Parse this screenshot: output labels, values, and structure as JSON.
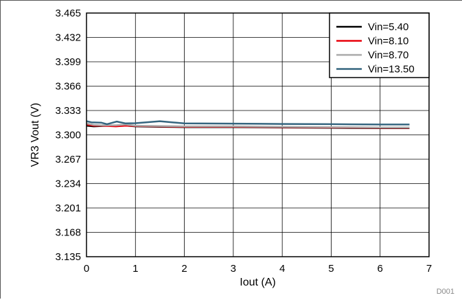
{
  "chart_data": {
    "type": "line",
    "title": "",
    "xlabel": "Iout (A)",
    "ylabel": "VR3 Vout (V)",
    "xlim": [
      0,
      7
    ],
    "ylim": [
      3.135,
      3.465
    ],
    "x_ticks": [
      "0",
      "1",
      "2",
      "3",
      "4",
      "5",
      "6",
      "7"
    ],
    "y_ticks": [
      "3.135",
      "3.168",
      "3.201",
      "3.234",
      "3.267",
      "3.300",
      "3.333",
      "3.366",
      "3.399",
      "3.432",
      "3.465"
    ],
    "grid": true,
    "legend_position": "top-right",
    "series": [
      {
        "name": "Vin=5.40",
        "color": "#000000",
        "points": [
          [
            0,
            3.3125
          ],
          [
            0.15,
            3.3115
          ],
          [
            0.3,
            3.312
          ],
          [
            0.5,
            3.3125
          ],
          [
            0.7,
            3.313
          ],
          [
            1.0,
            3.3115
          ],
          [
            1.5,
            3.311
          ],
          [
            2,
            3.3105
          ],
          [
            3,
            3.3105
          ],
          [
            4,
            3.31
          ],
          [
            5,
            3.3095
          ],
          [
            6,
            3.309
          ],
          [
            6.6,
            3.309
          ]
        ]
      },
      {
        "name": "Vin=8.10",
        "color": "#e8000b",
        "points": [
          [
            0,
            3.314
          ],
          [
            0.15,
            3.3125
          ],
          [
            0.3,
            3.3125
          ],
          [
            0.6,
            3.3115
          ],
          [
            0.8,
            3.3125
          ],
          [
            1.0,
            3.312
          ],
          [
            1.5,
            3.3115
          ],
          [
            2,
            3.311
          ],
          [
            3,
            3.311
          ],
          [
            4,
            3.3105
          ],
          [
            5,
            3.31
          ],
          [
            6,
            3.3095
          ],
          [
            6.6,
            3.3095
          ]
        ]
      },
      {
        "name": "Vin=8.70",
        "color": "#a9a9a9",
        "points": [
          [
            0,
            3.3155
          ],
          [
            0.15,
            3.3135
          ],
          [
            0.3,
            3.313
          ],
          [
            0.6,
            3.313
          ],
          [
            0.8,
            3.314
          ],
          [
            1.0,
            3.3125
          ],
          [
            1.5,
            3.312
          ],
          [
            2,
            3.3115
          ],
          [
            3,
            3.3115
          ],
          [
            4,
            3.311
          ],
          [
            5,
            3.3105
          ],
          [
            6,
            3.31
          ],
          [
            6.6,
            3.31
          ]
        ]
      },
      {
        "name": "Vin=13.50",
        "color": "#34657f",
        "points": [
          [
            0,
            3.3185
          ],
          [
            0.1,
            3.317
          ],
          [
            0.3,
            3.3165
          ],
          [
            0.42,
            3.3145
          ],
          [
            0.62,
            3.318
          ],
          [
            0.8,
            3.3155
          ],
          [
            1.0,
            3.3158
          ],
          [
            1.5,
            3.3185
          ],
          [
            2.0,
            3.3155
          ],
          [
            3,
            3.3152
          ],
          [
            4,
            3.3148
          ],
          [
            5,
            3.3145
          ],
          [
            6,
            3.314
          ],
          [
            6.6,
            3.314
          ]
        ]
      }
    ],
    "annotation": "D001"
  }
}
